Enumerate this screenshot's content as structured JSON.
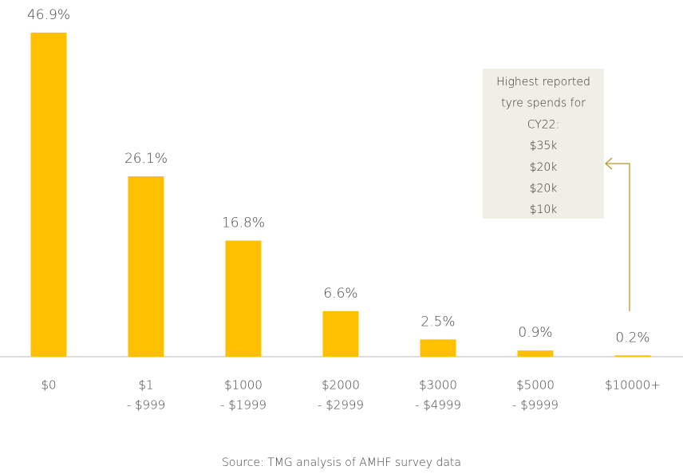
{
  "chart_data": {
    "type": "bar",
    "categories": [
      [
        "$0"
      ],
      [
        "$1",
        "- $999"
      ],
      [
        "$1000",
        "- $1999"
      ],
      [
        "$2000",
        "- $2999"
      ],
      [
        "$3000",
        "- $4999"
      ],
      [
        "$5000",
        "- $9999"
      ],
      [
        "$10000+"
      ]
    ],
    "values": [
      46.9,
      26.1,
      16.8,
      6.6,
      2.5,
      0.9,
      0.2
    ],
    "value_labels": [
      "46.9%",
      "26.1%",
      "16.8%",
      "6.6%",
      "2.5%",
      "0.9%",
      "0.2%"
    ],
    "color": "#ffc000",
    "ylim": [
      0,
      50
    ],
    "annotation": [
      "Highest reported",
      "tyre spends for",
      "CY22:",
      "$35k",
      "$20k",
      "$20k",
      "$10k"
    ],
    "source": "Source: TMG analysis of AMHF survey data"
  }
}
